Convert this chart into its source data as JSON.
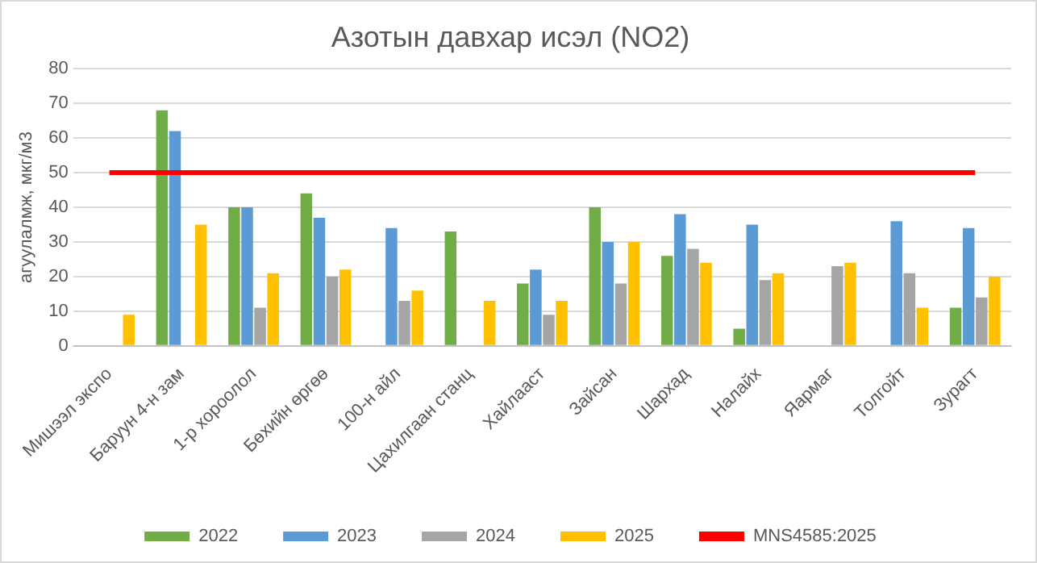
{
  "chart_data": {
    "type": "bar",
    "title": "Азотын давхар исэл (NO2)",
    "ylabel": "агуулалмж, мкг/м3",
    "categories": [
      "Мишээл экспо",
      "Баруун 4-н зам",
      "1-р хороолол",
      "Бөхийн өргөө",
      "100-н айл",
      "Цахилгаан станц",
      "Хайлааст",
      "Зайсан",
      "Шархад",
      "Налайх",
      "Яармаг",
      "Толгойт",
      "Зурагт"
    ],
    "series": [
      {
        "name": "2022",
        "color": "#70ad47",
        "values": [
          null,
          68,
          40,
          44,
          null,
          33,
          18,
          40,
          26,
          5,
          null,
          null,
          11
        ]
      },
      {
        "name": "2023",
        "color": "#5b9bd5",
        "values": [
          null,
          62,
          40,
          37,
          34,
          null,
          22,
          30,
          38,
          35,
          null,
          36,
          34
        ]
      },
      {
        "name": "2024",
        "color": "#a5a5a5",
        "values": [
          null,
          null,
          11,
          20,
          13,
          null,
          9,
          18,
          28,
          19,
          23,
          21,
          14
        ]
      },
      {
        "name": "2025",
        "color": "#ffc000",
        "values": [
          9,
          35,
          21,
          22,
          16,
          13,
          13,
          30,
          24,
          21,
          24,
          11,
          20
        ]
      },
      {
        "name": "MNS4585:2025",
        "type": "line",
        "color": "#ff0000",
        "marker": "none",
        "values": [
          50,
          50,
          50,
          50,
          50,
          50,
          50,
          50,
          50,
          50,
          50,
          50,
          50
        ]
      }
    ],
    "ylim": [
      0,
      80
    ],
    "yticks": [
      0,
      10,
      20,
      30,
      40,
      50,
      60,
      70,
      80
    ],
    "grid": "y",
    "legend": "bottom"
  }
}
